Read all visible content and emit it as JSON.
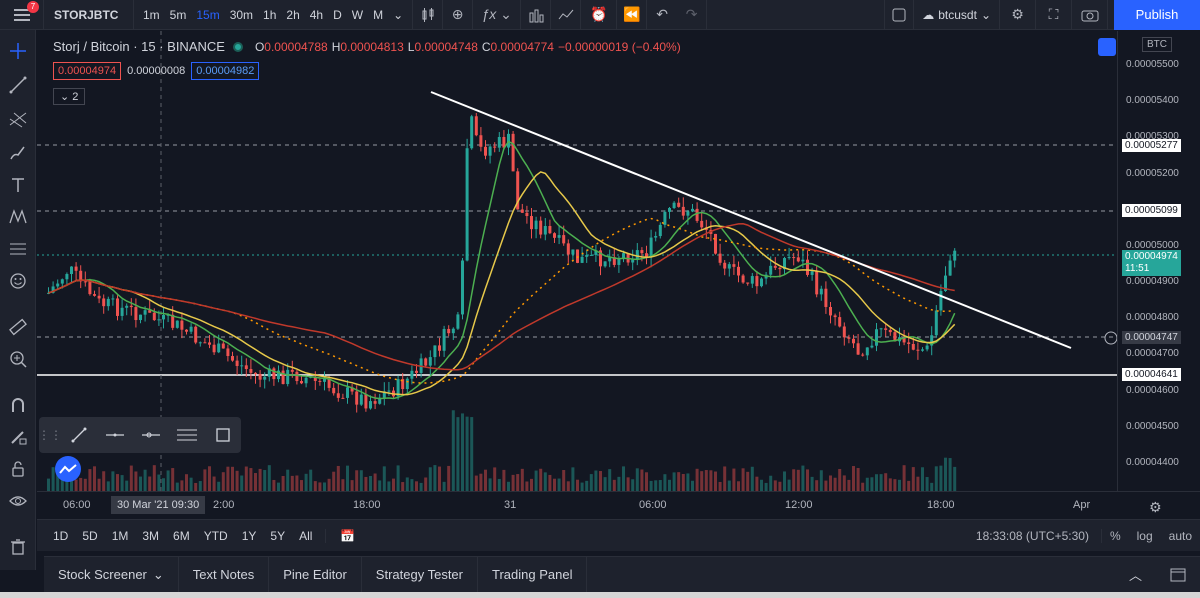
{
  "toolbar": {
    "notification_count": "7",
    "symbol": "STORJBTC",
    "intervals": [
      "1m",
      "5m",
      "15m",
      "30m",
      "1h",
      "2h",
      "4h",
      "D",
      "W",
      "M"
    ],
    "active_interval": "15m",
    "layout_name": "btcusdt",
    "publish_label": "Publish"
  },
  "legend": {
    "title": "Storj / Bitcoin · 15 · BINANCE",
    "o_label": "O",
    "o_value": "0.00004788",
    "h_label": "H",
    "h_value": "0.00004813",
    "l_label": "L",
    "l_value": "0.00004748",
    "c_label": "C",
    "c_value": "0.00004774",
    "change": "−0.00000019 (−0.40%)",
    "bid": "0.00004974",
    "spread": "0.00000008",
    "ask": "0.00004982",
    "indicators_count": "2"
  },
  "price_axis": {
    "currency": "BTC",
    "ticks": [
      "0.00005500",
      "0.00005400",
      "0.00005300",
      "0.00005200",
      "0.00005000",
      "0.00004900",
      "0.00004800",
      "0.00004700",
      "0.00004600",
      "0.00004500",
      "0.00004400"
    ],
    "tags": [
      "0.00005277",
      "0.00005099",
      "0.00004747",
      "0.00004641"
    ],
    "current_price": "0.00004974",
    "countdown": "11:51"
  },
  "time_axis": {
    "labels": [
      "06:00",
      "2:00",
      "18:00",
      "31",
      "06:00",
      "12:00",
      "18:00",
      "Apr"
    ],
    "cursor_label": "30 Mar '21  09:30"
  },
  "range_bar": {
    "ranges": [
      "1D",
      "5D",
      "1M",
      "3M",
      "6M",
      "YTD",
      "1Y",
      "5Y",
      "All"
    ],
    "clock": "18:33:08 (UTC+5:30)",
    "percent": "%",
    "log": "log",
    "auto": "auto"
  },
  "panels": [
    "Stock Screener",
    "Text Notes",
    "Pine Editor",
    "Strategy Tester",
    "Trading Panel"
  ],
  "colors": {
    "up": "#26a69a",
    "down": "#ef5350",
    "accent": "#2962ff",
    "background": "#131722"
  }
}
